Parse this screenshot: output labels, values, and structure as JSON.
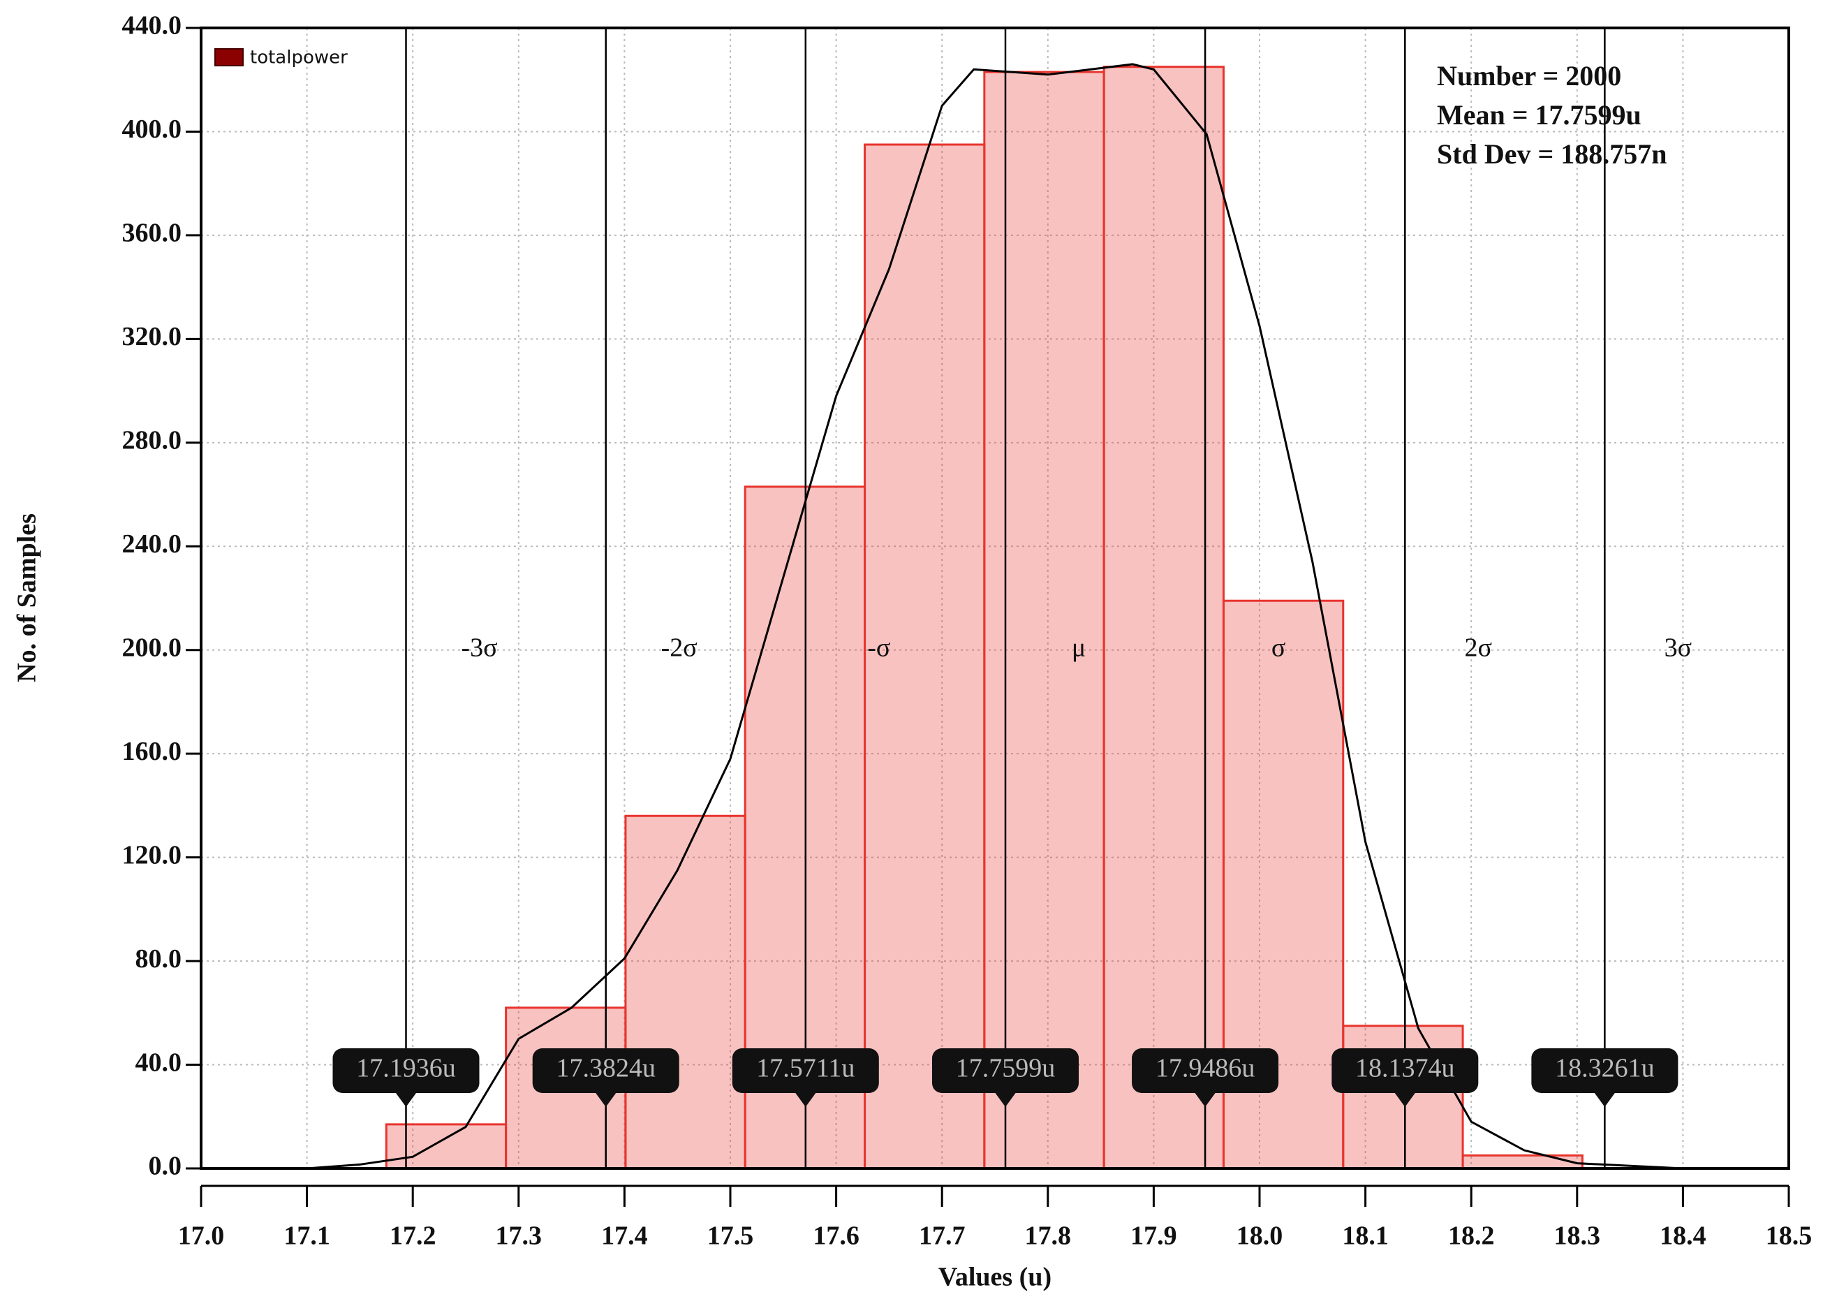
{
  "chart_data": {
    "type": "histogram",
    "xlabel": "Values (u)",
    "ylabel": "No. of Samples",
    "series_name": "totalpower",
    "color": "#e8342e",
    "bins": [
      17.175,
      17.288,
      17.401,
      17.514,
      17.627,
      17.74,
      17.853,
      17.966,
      18.079,
      18.192,
      18.305
    ],
    "values": [
      17,
      62,
      136,
      263,
      395,
      423,
      425,
      219,
      55,
      5
    ],
    "curve": {
      "x": [
        17.1,
        17.15,
        17.2,
        17.25,
        17.3,
        17.35,
        17.4,
        17.45,
        17.5,
        17.55,
        17.6,
        17.65,
        17.7,
        17.73,
        17.8,
        17.88,
        17.9,
        17.95,
        18.0,
        18.05,
        18.1,
        18.15,
        18.2,
        18.25,
        18.3,
        18.4
      ],
      "y": [
        0,
        1.5,
        4.5,
        16,
        50,
        62,
        81,
        115,
        158,
        228,
        298,
        347,
        410,
        424,
        422,
        426,
        424,
        399,
        325,
        234,
        126,
        54,
        18,
        7,
        2,
        0
      ]
    },
    "sigma_lines": [
      {
        "x": 17.1936,
        "label": "17.1936u",
        "region": "-3σ"
      },
      {
        "x": 17.3824,
        "label": "17.3824u",
        "region": "-2σ"
      },
      {
        "x": 17.5711,
        "label": "17.5711u",
        "region": "-σ"
      },
      {
        "x": 17.7599,
        "label": "17.7599u",
        "region": "μ"
      },
      {
        "x": 17.9486,
        "label": "17.9486u",
        "region": "σ"
      },
      {
        "x": 18.1374,
        "label": "18.1374u",
        "region": "2σ"
      },
      {
        "x": 18.3261,
        "label": "18.3261u",
        "region": "3σ"
      }
    ],
    "stats": [
      "Number = 2000",
      "Mean = 17.7599u",
      "Std Dev = 188.757n"
    ],
    "xlim": [
      17.0,
      18.5
    ],
    "xticks": [
      {
        "value": 17.0,
        "label": "17.0"
      },
      17.1,
      17.2,
      17.3,
      17.4,
      17.5,
      17.6,
      17.7,
      17.8,
      17.9,
      {
        "value": 18.0,
        "label": "18.0"
      },
      18.1,
      18.2,
      18.3,
      18.4,
      18.5
    ],
    "ylim": [
      0,
      440
    ],
    "yticks": [
      {
        "value": 0,
        "label": "0.0"
      },
      {
        "value": 40,
        "label": "40.0"
      },
      {
        "value": 80,
        "label": "80.0"
      },
      {
        "value": 120,
        "label": "120.0"
      },
      {
        "value": 160,
        "label": "160.0"
      },
      {
        "value": 200,
        "label": "200.0"
      },
      {
        "value": 240,
        "label": "240.0"
      },
      {
        "value": 280,
        "label": "280.0"
      },
      {
        "value": 320,
        "label": "320.0"
      },
      {
        "value": 360,
        "label": "360.0"
      },
      {
        "value": 400,
        "label": "400.0"
      },
      {
        "value": 440,
        "label": "440.0"
      }
    ],
    "grid": true
  }
}
